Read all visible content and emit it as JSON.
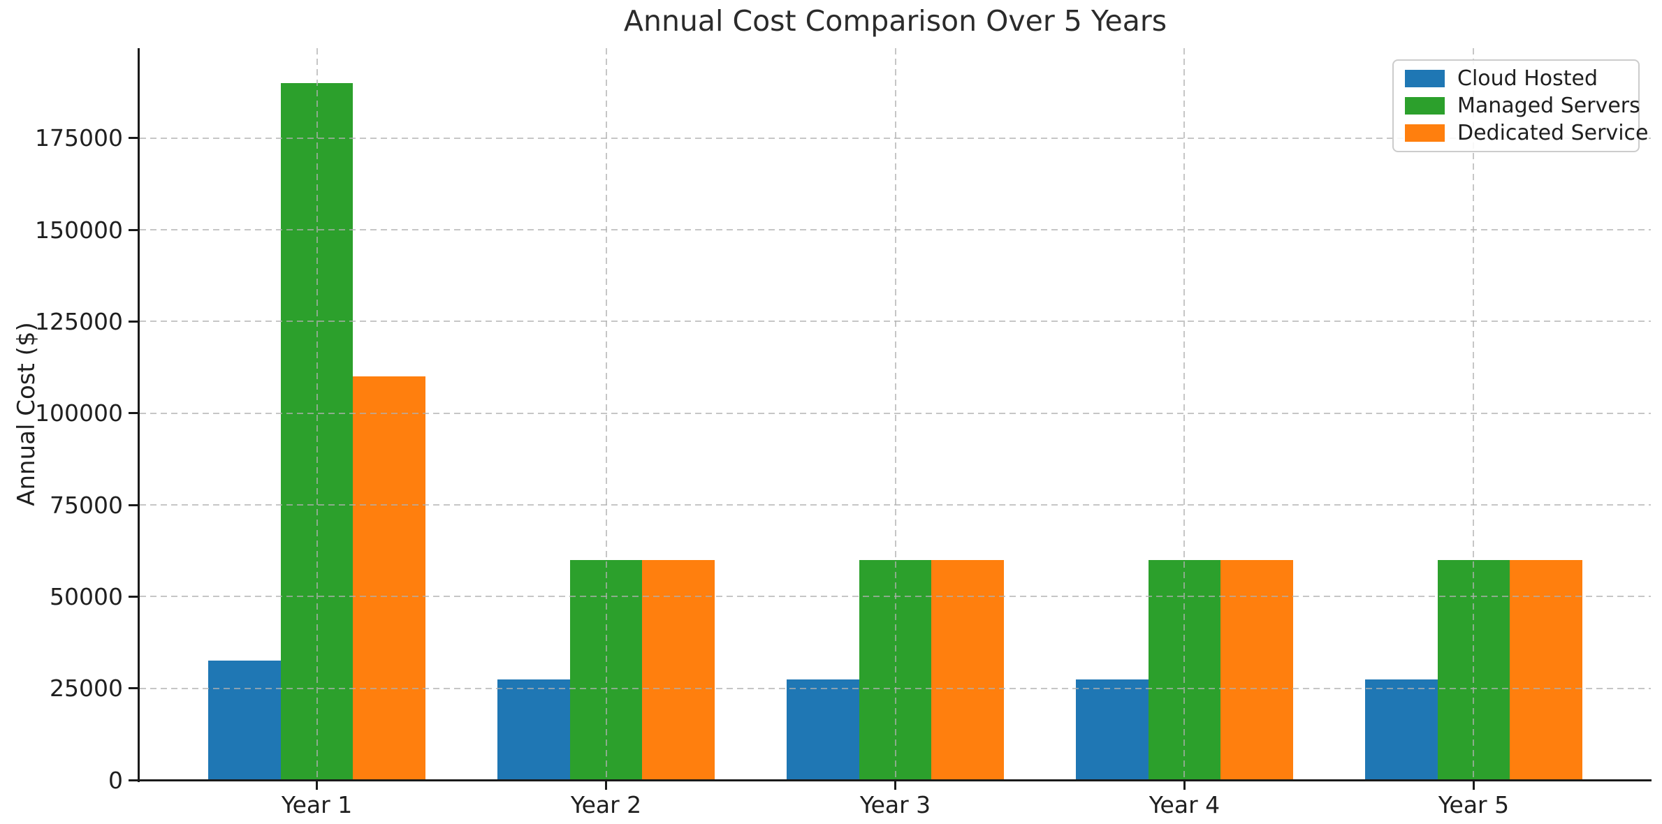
{
  "chart_data": {
    "type": "bar",
    "title": "Annual Cost Comparison Over 5 Years",
    "xlabel": "",
    "ylabel": "Annual Cost ($)",
    "categories": [
      "Year 1",
      "Year 2",
      "Year 3",
      "Year 4",
      "Year 5"
    ],
    "series": [
      {
        "name": "Cloud Hosted",
        "color": "#1f77b4",
        "values": [
          32500,
          27500,
          27500,
          27500,
          27500
        ]
      },
      {
        "name": "Managed Servers",
        "color": "#2ca02c",
        "values": [
          190000,
          60000,
          60000,
          60000,
          60000
        ]
      },
      {
        "name": "Dedicated Service",
        "color": "#ff7f0e",
        "values": [
          110000,
          60000,
          60000,
          60000,
          60000
        ]
      }
    ],
    "y_ticks": [
      0,
      25000,
      50000,
      75000,
      100000,
      125000,
      150000,
      175000
    ],
    "ylim": [
      0,
      199500
    ],
    "bar_width": 0.25,
    "grid": true,
    "grid_linestyle": "dashed",
    "legend_position": "upper right",
    "colors": {
      "grid": "#b0b0b0",
      "axis": "#1a1a1a",
      "text": "#1f1f1f"
    }
  }
}
